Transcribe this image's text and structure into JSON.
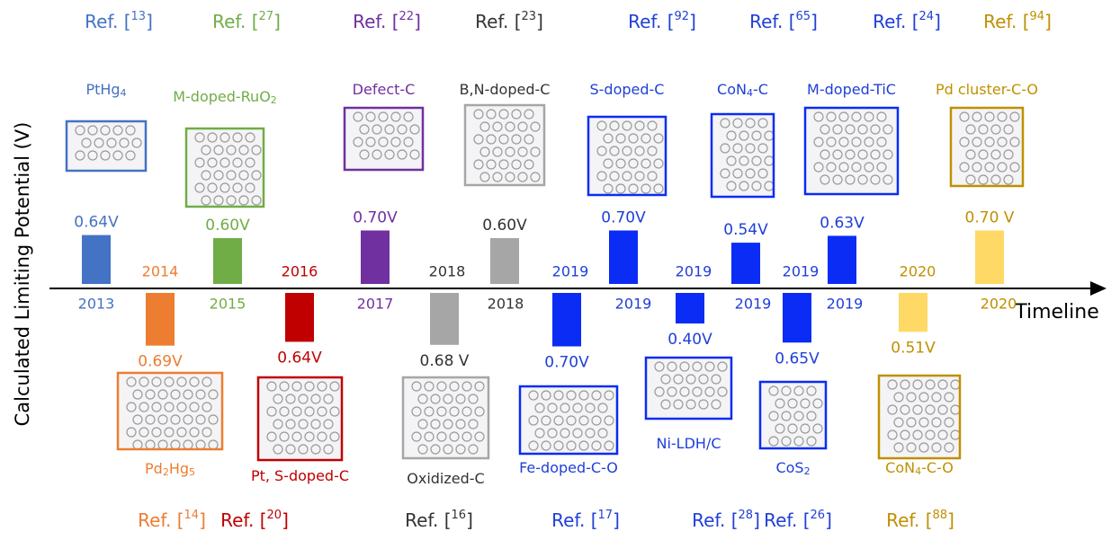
{
  "y_axis_label": "Calculated Limiting Potential (V)",
  "x_axis_label": "Timeline",
  "ref_format": {
    "before": "Ref. [",
    "after": "]"
  },
  "items": [
    {
      "year": "2013",
      "name": [
        "PtHg",
        "4"
      ],
      "ref": "13",
      "value": 0.64,
      "value_label": "0.64V",
      "position": "above",
      "color": "#4472c4",
      "text_color": "#4472c4"
    },
    {
      "year": "2014",
      "name": [
        "Pd",
        "2",
        "Hg",
        "5"
      ],
      "ref": "14",
      "value": 0.69,
      "value_label": "0.69V",
      "position": "below",
      "color": "#ed7d31",
      "text_color": "#ed7d31"
    },
    {
      "year": "2015",
      "name": [
        "M-doped-RuO",
        "2"
      ],
      "ref": "27",
      "value": 0.6,
      "value_label": "0.60V",
      "position": "above",
      "color": "#70ad47",
      "text_color": "#70ad47"
    },
    {
      "year": "2016",
      "name": [
        "Pt, S-doped-C"
      ],
      "ref": "20",
      "value": 0.64,
      "value_label": "0.64V",
      "position": "below",
      "color": "#c00000",
      "text_color": "#c00000"
    },
    {
      "year": "2017",
      "name": [
        "Defect-C"
      ],
      "ref": "22",
      "value": 0.7,
      "value_label": "0.70V",
      "position": "above",
      "color": "#7030a0",
      "text_color": "#7030a0"
    },
    {
      "year": "2018",
      "name": [
        "Oxidized-C"
      ],
      "ref": "16",
      "value": 0.68,
      "value_label": "0.68 V",
      "position": "below",
      "color": "#a6a6a6",
      "text_color": "#333333"
    },
    {
      "year": "2018",
      "name": [
        "B,N-doped-C"
      ],
      "ref": "23",
      "value": 0.6,
      "value_label": "0.60V",
      "position": "above",
      "color": "#a6a6a6",
      "text_color": "#333333"
    },
    {
      "year": "2019",
      "name": [
        "Fe-doped-C-O"
      ],
      "ref": "17",
      "value": 0.7,
      "value_label": "0.70V",
      "position": "below",
      "color": "#0a2cf5",
      "text_color": "#1f3fd8"
    },
    {
      "year": "2019",
      "name": [
        "S-doped-C"
      ],
      "ref": "92",
      "value": 0.7,
      "value_label": "0.70V",
      "position": "above",
      "color": "#0a2cf5",
      "text_color": "#1f3fd8"
    },
    {
      "year": "2019",
      "name": [
        "Ni-LDH/C"
      ],
      "ref": "28",
      "value": 0.4,
      "value_label": "0.40V",
      "position": "below",
      "color": "#0a2cf5",
      "text_color": "#1f3fd8"
    },
    {
      "year": "2019",
      "name": [
        "CoN",
        "4",
        "-C"
      ],
      "ref": "65",
      "value": 0.54,
      "value_label": "0.54V",
      "position": "above",
      "color": "#0a2cf5",
      "text_color": "#1f3fd8"
    },
    {
      "year": "2019",
      "name": [
        "CoS",
        "2"
      ],
      "ref": "26",
      "value": 0.65,
      "value_label": "0.65V",
      "position": "below",
      "color": "#0a2cf5",
      "text_color": "#1f3fd8"
    },
    {
      "year": "2019",
      "name": [
        "M-doped-TiC"
      ],
      "ref": "24",
      "value": 0.63,
      "value_label": "0.63V",
      "position": "above",
      "color": "#0a2cf5",
      "text_color": "#1f3fd8"
    },
    {
      "year": "2020",
      "name": [
        "CoN",
        "4",
        "-C-O"
      ],
      "ref": "88",
      "value": 0.51,
      "value_label": "0.51V",
      "position": "below",
      "color": "#ffd966",
      "text_color": "#bf9000"
    },
    {
      "year": "2020",
      "name": [
        "Pd cluster-C-O"
      ],
      "ref": "94",
      "value": 0.7,
      "value_label": "0.70 V",
      "position": "above",
      "color": "#ffd966",
      "text_color": "#bf9000"
    }
  ]
}
